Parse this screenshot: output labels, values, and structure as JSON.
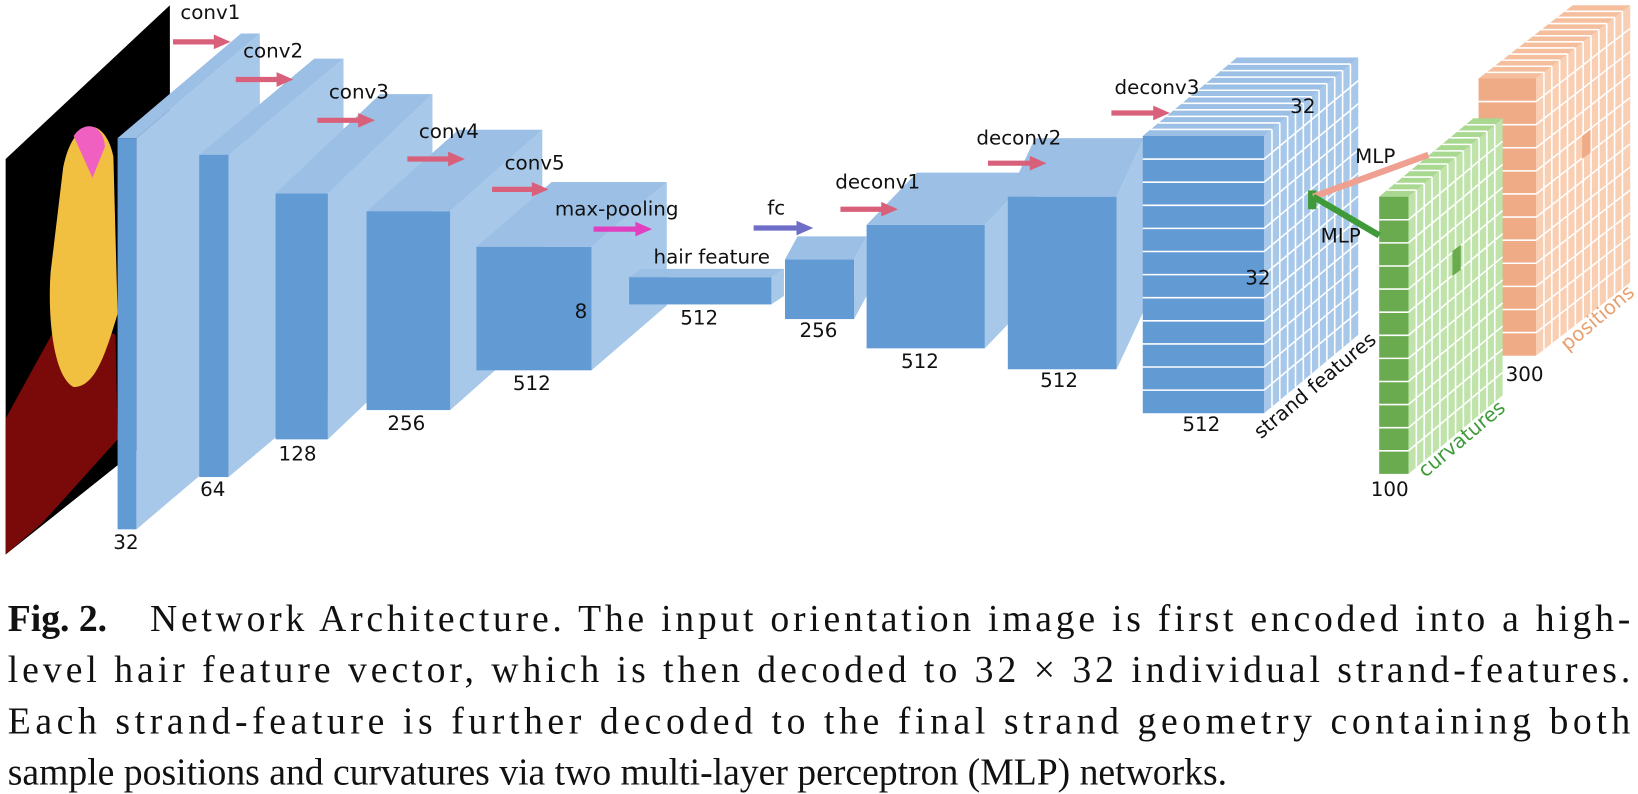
{
  "figure": {
    "layer_labels": [
      "conv1",
      "conv2",
      "conv3",
      "conv4",
      "conv5",
      "max-pooling",
      "fc",
      "deconv1",
      "deconv2",
      "deconv3"
    ],
    "dimension_labels": [
      "32",
      "64",
      "128",
      "256",
      "512",
      "8",
      "512",
      "256",
      "512",
      "512",
      "512",
      "32",
      "32",
      "100",
      "300"
    ],
    "annotations": [
      "hair feature",
      "strand features",
      "MLP",
      "MLP",
      "curvatures",
      "positions"
    ]
  },
  "caption": {
    "label": "Fig. 2.",
    "lines": [
      "Network Architecture. The input orientation image is first encoded into a high-",
      "level hair feature vector, which is then decoded to 32 × 32 individual strand-features.",
      "Each strand-feature is further decoded to the final strand geometry containing both",
      "sample positions and curvatures via two multi-layer perceptron (MLP) networks."
    ]
  }
}
